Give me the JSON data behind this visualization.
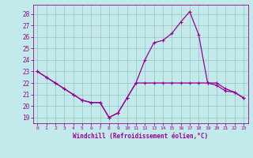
{
  "xlabel": "Windchill (Refroidissement éolien,°C)",
  "xlim": [
    -0.5,
    23.5
  ],
  "ylim": [
    18.5,
    28.8
  ],
  "yticks": [
    19,
    20,
    21,
    22,
    23,
    24,
    25,
    26,
    27,
    28
  ],
  "xticks": [
    0,
    1,
    2,
    3,
    4,
    5,
    6,
    7,
    8,
    9,
    10,
    11,
    12,
    13,
    14,
    15,
    16,
    17,
    18,
    19,
    20,
    21,
    22,
    23
  ],
  "bg_color": "#c2eaea",
  "grid_color": "#9bbfbf",
  "line_color": "#990099",
  "line1_x": [
    0,
    1,
    2,
    3,
    4,
    5,
    6,
    7,
    8,
    9,
    10,
    11,
    12,
    13,
    14,
    15,
    16,
    17,
    18,
    19,
    20,
    21,
    22,
    23
  ],
  "line1_y": [
    23.0,
    22.5,
    22.0,
    21.5,
    21.0,
    20.5,
    20.3,
    20.3,
    19.0,
    19.4,
    20.7,
    22.0,
    22.0,
    22.0,
    22.0,
    22.0,
    22.0,
    22.0,
    22.0,
    22.0,
    22.0,
    21.5,
    21.2,
    20.7
  ],
  "line2_x": [
    0,
    1,
    2,
    3,
    4,
    5,
    6,
    7,
    8,
    9,
    10,
    11,
    12,
    13,
    14,
    15,
    16,
    17,
    18,
    19,
    20,
    21,
    22,
    23
  ],
  "line2_y": [
    23.0,
    22.5,
    22.0,
    21.5,
    21.0,
    20.5,
    20.3,
    20.3,
    19.0,
    19.4,
    20.7,
    22.0,
    24.0,
    25.5,
    25.7,
    26.3,
    27.3,
    28.2,
    26.2,
    22.0,
    21.8,
    21.3,
    21.2,
    20.7
  ]
}
